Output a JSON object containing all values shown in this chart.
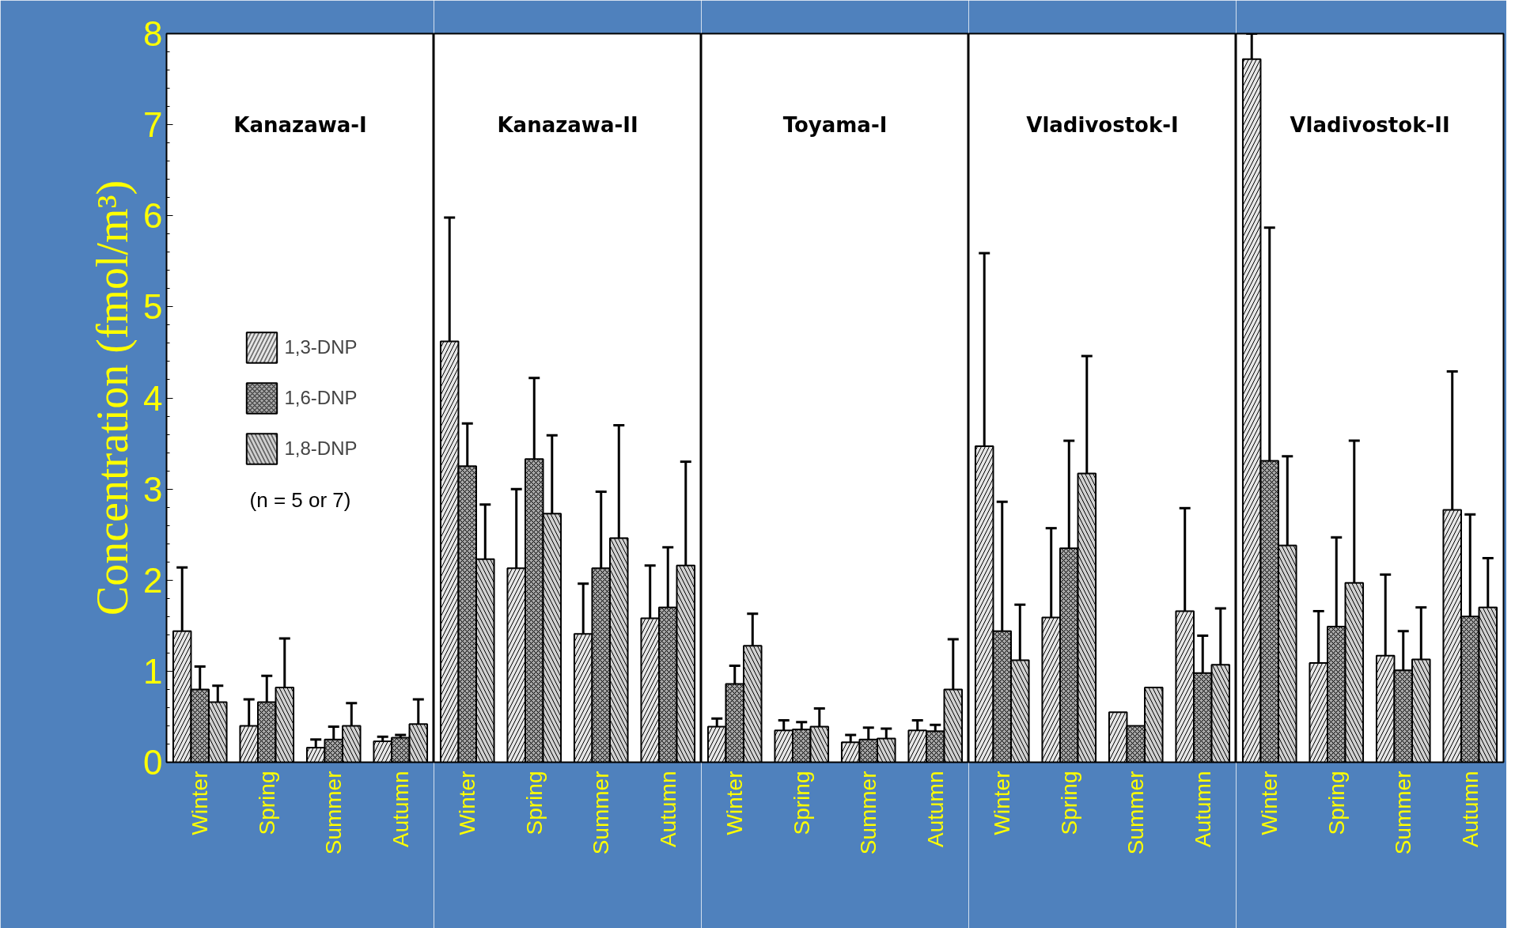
{
  "chart_data": [
    {
      "type": "bar",
      "title": "Kanazawa-I",
      "ylabel": "Concentration (fmol/m³)",
      "categories": [
        "Winter",
        "Spring",
        "Summer",
        "Autumn"
      ],
      "ylim": [
        0,
        8
      ],
      "yticks": [
        0,
        1,
        2,
        3,
        4,
        5,
        6,
        7,
        8
      ],
      "legend": "center",
      "annotations": [
        "(n = 5 or 7)"
      ],
      "series": [
        {
          "name": "1,3-DNP",
          "color": "#e6e6e6",
          "values": [
            1.44,
            0.4,
            0.16,
            0.23
          ],
          "errors": [
            [
              1.44,
              2.14
            ],
            [
              0.4,
              0.69
            ],
            [
              0.16,
              0.25
            ],
            [
              0.23,
              0.28
            ]
          ]
        },
        {
          "name": "1,6-DNP",
          "color": "#a6a6a6",
          "values": [
            0.8,
            0.66,
            0.25,
            0.27
          ],
          "errors": [
            [
              0.8,
              1.05
            ],
            [
              0.66,
              0.95
            ],
            [
              0.25,
              0.39
            ],
            [
              0.27,
              0.3
            ]
          ]
        },
        {
          "name": "1,8-DNP",
          "color": "#d0d0d0",
          "values": [
            0.66,
            0.82,
            0.4,
            0.42
          ],
          "errors": [
            [
              0.66,
              0.84
            ],
            [
              0.82,
              1.36
            ],
            [
              0.4,
              0.65
            ],
            [
              0.42,
              0.69
            ]
          ]
        }
      ]
    },
    {
      "type": "bar",
      "title": "Kanazawa-II",
      "categories": [
        "Winter",
        "Spring",
        "Summer",
        "Autumn"
      ],
      "ylim": [
        0,
        8
      ],
      "yticks": [
        0,
        1,
        2,
        3,
        4,
        5,
        6,
        7,
        8
      ],
      "tick_labels": "x",
      "series": [
        {
          "color": "#e6e6e6",
          "values": [
            4.62,
            2.13,
            1.41,
            1.58
          ],
          "errors": [
            [
              4.62,
              5.98
            ],
            [
              2.13,
              3.0
            ],
            [
              1.41,
              1.96
            ],
            [
              1.58,
              2.16
            ]
          ]
        },
        {
          "color": "#a6a6a6",
          "values": [
            3.25,
            3.33,
            2.13,
            1.7
          ],
          "errors": [
            [
              3.25,
              3.72
            ],
            [
              3.33,
              4.22
            ],
            [
              2.13,
              2.97
            ],
            [
              1.7,
              2.36
            ]
          ]
        },
        {
          "color": "#d0d0d0",
          "values": [
            2.23,
            2.73,
            2.46,
            2.16
          ],
          "errors": [
            [
              2.23,
              2.83
            ],
            [
              2.73,
              3.59
            ],
            [
              2.46,
              3.7
            ],
            [
              2.16,
              3.3
            ]
          ]
        }
      ]
    },
    {
      "type": "bar",
      "title": "Toyama-I",
      "categories": [
        "Winter",
        "Spring",
        "Summer",
        "Autumn"
      ],
      "ylim": [
        0,
        8
      ],
      "yticks": [
        0,
        1,
        2,
        3,
        4,
        5,
        6,
        7,
        8
      ],
      "tick_labels": "x",
      "series": [
        {
          "color": "#e6e6e6",
          "values": [
            0.39,
            0.35,
            0.22,
            0.35
          ],
          "errors": [
            [
              0.39,
              0.48
            ],
            [
              0.35,
              0.46
            ],
            [
              0.22,
              0.3
            ],
            [
              0.35,
              0.46
            ]
          ]
        },
        {
          "color": "#a6a6a6",
          "values": [
            0.86,
            0.36,
            0.25,
            0.34
          ],
          "errors": [
            [
              0.86,
              1.06
            ],
            [
              0.36,
              0.44
            ],
            [
              0.25,
              0.38
            ],
            [
              0.34,
              0.41
            ]
          ]
        },
        {
          "color": "#d0d0d0",
          "values": [
            1.28,
            0.39,
            0.26,
            0.8
          ],
          "errors": [
            [
              1.28,
              1.63
            ],
            [
              0.39,
              0.59
            ],
            [
              0.26,
              0.37
            ],
            [
              0.8,
              1.35
            ]
          ]
        }
      ]
    },
    {
      "type": "bar",
      "title": "Vladivostok-I",
      "categories": [
        "Winter",
        "Spring",
        "Summer",
        "Autumn"
      ],
      "ylim": [
        0,
        8
      ],
      "yticks": [
        0,
        1,
        2,
        3,
        4,
        5,
        6,
        7,
        8
      ],
      "tick_labels": "x",
      "series": [
        {
          "color": "#e6e6e6",
          "values": [
            3.47,
            1.59,
            0.55,
            1.66
          ],
          "errors": [
            [
              3.47,
              5.59
            ],
            [
              1.59,
              2.57
            ],
            null,
            [
              1.66,
              2.79
            ]
          ]
        },
        {
          "color": "#a6a6a6",
          "values": [
            1.44,
            2.35,
            0.4,
            0.98
          ],
          "errors": [
            [
              1.44,
              2.86
            ],
            [
              2.35,
              3.53
            ],
            null,
            [
              0.98,
              1.39
            ]
          ]
        },
        {
          "color": "#d0d0d0",
          "values": [
            1.12,
            3.17,
            0.82,
            1.07
          ],
          "errors": [
            [
              1.12,
              1.73
            ],
            [
              3.17,
              4.46
            ],
            null,
            [
              1.07,
              1.69
            ]
          ]
        }
      ]
    },
    {
      "type": "bar",
      "title": "Vladivostok-II",
      "categories": [
        "Winter",
        "Spring",
        "Summer",
        "Autumn"
      ],
      "ylim": [
        0,
        8
      ],
      "yticks": [
        0,
        1,
        2,
        3,
        4,
        5,
        6,
        7,
        8
      ],
      "tick_labels": "x",
      "series": [
        {
          "color": "#e6e6e6",
          "values": [
            7.72,
            1.09,
            1.17,
            2.77
          ],
          "errors": [
            [
              7.72,
              8.0
            ],
            [
              1.09,
              1.66
            ],
            [
              1.17,
              2.06
            ],
            [
              2.77,
              4.29
            ]
          ]
        },
        {
          "color": "#a6a6a6",
          "values": [
            3.31,
            1.49,
            1.01,
            1.6
          ],
          "errors": [
            [
              3.31,
              5.87
            ],
            [
              1.49,
              2.47
            ],
            [
              1.01,
              1.44
            ],
            [
              1.6,
              2.72
            ]
          ]
        },
        {
          "color": "#d0d0d0",
          "values": [
            2.38,
            1.97,
            1.13,
            1.7
          ],
          "errors": [
            [
              2.38,
              3.36
            ],
            [
              1.97,
              3.53
            ],
            [
              1.13,
              1.7
            ],
            [
              1.7,
              2.24
            ]
          ]
        }
      ]
    }
  ]
}
